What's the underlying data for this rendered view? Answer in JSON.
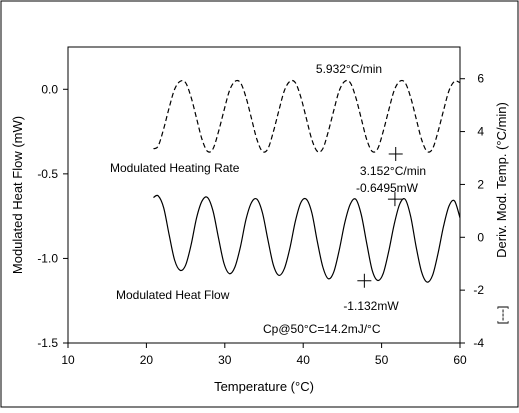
{
  "chart_data": {
    "type": "line",
    "xlabel": "Temperature (°C)",
    "ylabel_left": "Modulated Heat Flow (mW)",
    "ylabel_right": "Deriv. Mod. Temp. (°C/min)",
    "xlim": [
      10,
      60
    ],
    "ylim_left": [
      -1.5,
      0.25
    ],
    "ylim_right": [
      -4,
      7.2
    ],
    "x_ticks": [
      "10",
      "20",
      "30",
      "40",
      "50",
      "60"
    ],
    "y_ticks_left": [
      "0.0",
      "-0.5",
      "-1.0",
      "-1.5"
    ],
    "y_ticks_right": [
      "6",
      "4",
      "2",
      "0",
      "-2",
      "-4"
    ],
    "grid": false,
    "series": [
      {
        "name": "Modulated Heating Rate",
        "axis": "right",
        "style": "dashed",
        "x": [
          20.9,
          21.5,
          22.2,
          22.9,
          23.6,
          24.3,
          25.0,
          25.7,
          26.4,
          27.1,
          27.8,
          28.5,
          29.2,
          29.9,
          30.6,
          31.3,
          32.0,
          32.7,
          33.4,
          34.1,
          34.8,
          35.5,
          36.2,
          36.9,
          37.6,
          38.3,
          39.0,
          39.7,
          40.4,
          41.1,
          41.8,
          42.5,
          43.2,
          43.9,
          44.6,
          45.3,
          46.0,
          46.7,
          47.4,
          48.1,
          48.8,
          49.5,
          50.2,
          50.9,
          51.6,
          52.3,
          53.0,
          53.7,
          54.4,
          55.1,
          55.8,
          56.5,
          57.2,
          57.9,
          58.6,
          59.3,
          60.0
        ],
        "y": [
          3.35,
          3.45,
          4.1,
          4.9,
          5.6,
          5.9,
          5.85,
          5.3,
          4.5,
          3.7,
          3.25,
          3.35,
          4.0,
          4.8,
          5.55,
          5.9,
          5.85,
          5.3,
          4.5,
          3.7,
          3.25,
          3.35,
          4.0,
          4.8,
          5.55,
          5.9,
          5.85,
          5.3,
          4.5,
          3.7,
          3.25,
          3.35,
          4.0,
          4.8,
          5.55,
          5.9,
          5.85,
          5.3,
          4.5,
          3.7,
          3.25,
          3.35,
          4.0,
          4.8,
          5.55,
          5.9,
          5.85,
          5.3,
          4.5,
          3.7,
          3.25,
          3.35,
          4.0,
          4.8,
          5.55,
          5.9,
          5.85
        ]
      },
      {
        "name": "Modulated Heat Flow",
        "axis": "left",
        "style": "solid",
        "x": [
          20.9,
          21.5,
          22.2,
          22.9,
          23.6,
          24.3,
          25.0,
          25.7,
          26.4,
          27.1,
          27.8,
          28.5,
          29.2,
          29.9,
          30.6,
          31.3,
          32.0,
          32.7,
          33.4,
          34.1,
          34.8,
          35.5,
          36.2,
          36.9,
          37.6,
          38.3,
          39.0,
          39.7,
          40.4,
          41.1,
          41.8,
          42.5,
          43.2,
          43.9,
          44.6,
          45.3,
          46.0,
          46.7,
          47.4,
          48.1,
          48.8,
          49.5,
          50.2,
          50.9,
          51.6,
          52.3,
          53.0,
          53.7,
          54.4,
          55.1,
          55.8,
          56.5,
          57.2,
          57.9,
          58.6,
          59.3,
          60.0
        ],
        "y": [
          -0.64,
          -0.63,
          -0.7,
          -0.86,
          -1.01,
          -1.07,
          -1.04,
          -0.92,
          -0.76,
          -0.66,
          -0.64,
          -0.72,
          -0.88,
          -1.03,
          -1.09,
          -1.05,
          -0.93,
          -0.77,
          -0.67,
          -0.65,
          -0.73,
          -0.89,
          -1.04,
          -1.1,
          -1.06,
          -0.94,
          -0.78,
          -0.67,
          -0.65,
          -0.73,
          -0.9,
          -1.05,
          -1.12,
          -1.08,
          -0.95,
          -0.79,
          -0.68,
          -0.65,
          -0.74,
          -0.91,
          -1.07,
          -1.13,
          -1.09,
          -0.96,
          -0.8,
          -0.68,
          -0.65,
          -0.75,
          -0.93,
          -1.08,
          -1.14,
          -1.1,
          -0.97,
          -0.81,
          -0.69,
          -0.66,
          -0.76
        ]
      }
    ],
    "markers": [
      {
        "axis": "left",
        "x": 47.8,
        "y": -1.132
      },
      {
        "axis": "left",
        "x": 51.7,
        "y": -0.6495
      },
      {
        "axis": "right",
        "x": 51.8,
        "y": 3.152
      }
    ],
    "annotations": {
      "max_rate": "5.932°C/min",
      "min_rate": "3.152°C/min",
      "hf_max": "-0.6495mW",
      "hf_min": "-1.132mW",
      "label_rate": "Modulated Heating Rate",
      "label_hf": "Modulated Heat Flow",
      "cp": "Cp@50°C=14.2mJ/°C",
      "right_axis_legend": "[---]"
    }
  }
}
